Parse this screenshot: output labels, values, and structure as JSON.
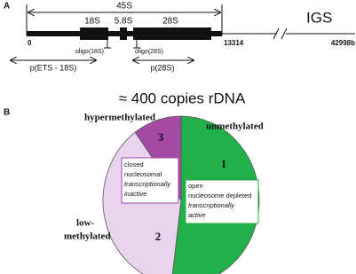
{
  "panel_a": {
    "label": "A",
    "span_label": "45S",
    "genes": [
      "18S",
      "5.8S",
      "28S"
    ],
    "igs_label": "IGS",
    "positions": [
      "0",
      "13314",
      "42998b"
    ],
    "oligos": [
      "oligo(18S)",
      "oligo(28S)"
    ],
    "probes": [
      "p(ETS - 18S)",
      "p(28S)"
    ]
  },
  "chart_data": {
    "type": "pie",
    "panel_label": "B",
    "title": "≈ 400 copies rDNA",
    "categories": [
      "1",
      "2",
      "3"
    ],
    "values": [
      52,
      38,
      10
    ],
    "colors": [
      "#22b04b",
      "#e8d4ef",
      "#a54aa5"
    ],
    "annotations": {
      "unmethylated": "unmethylated",
      "low_methylated": [
        "low-",
        "methylated"
      ],
      "hypermethylated": "hypermethylated",
      "open_box": [
        "open",
        "nucleosome depleted",
        "transcriptionally",
        "active"
      ],
      "closed_box": [
        "closed",
        "nucleosomal",
        "transcriptionally",
        "inactive"
      ]
    }
  }
}
